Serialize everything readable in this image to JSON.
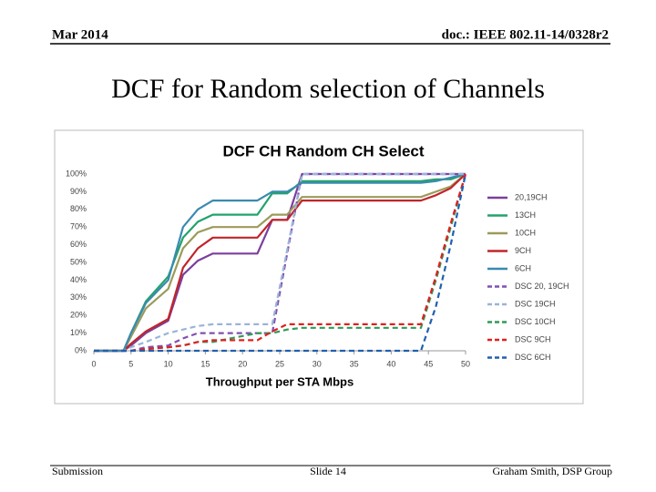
{
  "header": {
    "date": "Mar 2014",
    "doc": "doc.: IEEE 802.11-14/0328r2"
  },
  "slide_title": "DCF for Random selection of Channels",
  "footer": {
    "left": "Submission",
    "center": "Slide 14",
    "right": "Graham Smith, DSP Group"
  },
  "chart_data": {
    "type": "line",
    "title": "DCF CH Random CH Select",
    "x_label": "Throughput per STA Mbps",
    "x": [
      0,
      4,
      5,
      7,
      10,
      12,
      14,
      16,
      22,
      24,
      26,
      28,
      44,
      46,
      48,
      50
    ],
    "xlim": [
      0,
      50
    ],
    "xticks": [
      0,
      5,
      10,
      15,
      20,
      25,
      30,
      35,
      40,
      45,
      50
    ],
    "ylim": [
      0,
      100
    ],
    "yticks": [
      {
        "value": 0,
        "label": "0%"
      },
      {
        "value": 10,
        "label": "10%"
      },
      {
        "value": 20,
        "label": "20%"
      },
      {
        "value": 30,
        "label": "30%"
      },
      {
        "value": 40,
        "label": "40%"
      },
      {
        "value": 50,
        "label": "50%"
      },
      {
        "value": 60,
        "label": "60%"
      },
      {
        "value": 70,
        "label": "70%"
      },
      {
        "value": 80,
        "label": "80%"
      },
      {
        "value": 90,
        "label": "90%"
      },
      {
        "value": 100,
        "label": "100%"
      }
    ],
    "grid": false,
    "legend": "right",
    "series": [
      {
        "name": "20,19CH",
        "color": "#7b3f9e",
        "dashed": false,
        "values": [
          0,
          0,
          3,
          10,
          17,
          43,
          51,
          55,
          55,
          74,
          74,
          100,
          100,
          100,
          100,
          100
        ]
      },
      {
        "name": "13CH",
        "color": "#22a36a",
        "dashed": false,
        "values": [
          0,
          0,
          10,
          28,
          42,
          64,
          73,
          77,
          77,
          89,
          89,
          96,
          96,
          97,
          97,
          100
        ]
      },
      {
        "name": "10CH",
        "color": "#9c9a5a",
        "dashed": false,
        "values": [
          0,
          0,
          8,
          24,
          35,
          58,
          67,
          70,
          70,
          77,
          77,
          87,
          87,
          90,
          93,
          100
        ]
      },
      {
        "name": "9CH",
        "color": "#c0252a",
        "dashed": false,
        "values": [
          0,
          0,
          4,
          11,
          18,
          47,
          58,
          64,
          64,
          74,
          74,
          85,
          85,
          88,
          92,
          100
        ]
      },
      {
        "name": "6CH",
        "color": "#3a8ab0",
        "dashed": false,
        "values": [
          0,
          0,
          10,
          27,
          40,
          70,
          80,
          85,
          85,
          90,
          90,
          95,
          95,
          96,
          98,
          100
        ]
      },
      {
        "name": "DSC 20, 19CH",
        "color": "#8050b0",
        "dashed": true,
        "values": [
          0,
          0,
          0,
          2,
          3,
          7,
          10,
          10,
          10,
          10,
          55,
          100,
          100,
          100,
          100,
          100
        ]
      },
      {
        "name": "DSC 19CH",
        "color": "#9ab4d8",
        "dashed": true,
        "values": [
          0,
          0,
          2,
          5,
          10,
          12,
          14,
          15,
          15,
          15,
          57,
          100,
          100,
          100,
          100,
          100
        ]
      },
      {
        "name": "DSC 10CH",
        "color": "#2e9a55",
        "dashed": true,
        "values": [
          0,
          0,
          0,
          1,
          2,
          3,
          5,
          5,
          10,
          10,
          12,
          13,
          13,
          40,
          70,
          100
        ]
      },
      {
        "name": "DSC 9CH",
        "color": "#e02020",
        "dashed": true,
        "values": [
          0,
          0,
          0,
          1,
          2,
          3,
          5,
          6,
          6,
          11,
          15,
          15,
          15,
          42,
          72,
          100
        ]
      },
      {
        "name": "DSC 6CH",
        "color": "#2060b0",
        "dashed": true,
        "values": [
          0,
          0,
          0,
          0,
          0,
          0,
          0,
          0,
          0,
          0,
          0,
          0,
          0,
          25,
          60,
          100
        ]
      }
    ]
  }
}
